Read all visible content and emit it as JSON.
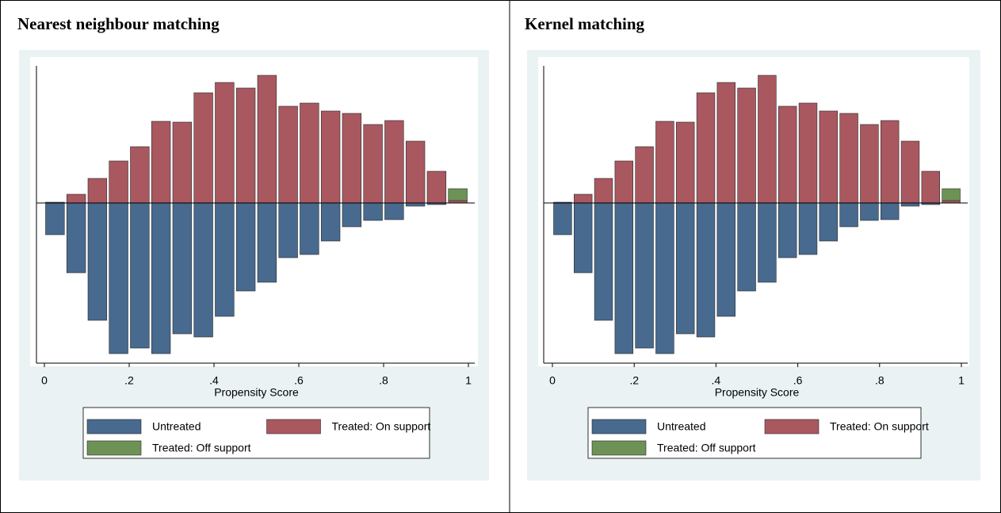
{
  "chart_data": [
    {
      "type": "histogram",
      "title": "Nearest neighbour matching",
      "xlabel": "Propensity Score",
      "bins": [
        0,
        0.05,
        0.1,
        0.15,
        0.2,
        0.25,
        0.3,
        0.35,
        0.4,
        0.45,
        0.5,
        0.55,
        0.6,
        0.65,
        0.7,
        0.75,
        0.8,
        0.85,
        0.9,
        0.95,
        1
      ],
      "series": [
        {
          "name": "Untreated",
          "color": "#476a8e",
          "values": [
            -40,
            -88,
            -148,
            -190,
            -183,
            -190,
            -165,
            -169,
            -143,
            -111,
            -100,
            -69,
            -65,
            -48,
            -30,
            -22,
            -21,
            -4,
            -2,
            0
          ]
        },
        {
          "name": "Treated: On support",
          "color": "#a9585f",
          "values": [
            1,
            11,
            31,
            53,
            71,
            103,
            102,
            139,
            152,
            145,
            161,
            122,
            126,
            116,
            113,
            99,
            104,
            78,
            40,
            3
          ]
        },
        {
          "name": "Treated: Off support",
          "color": "#6d9255",
          "values": [
            null,
            null,
            null,
            null,
            null,
            null,
            null,
            null,
            null,
            null,
            null,
            null,
            null,
            null,
            null,
            null,
            null,
            null,
            null,
            15
          ]
        }
      ],
      "xlim": [
        0,
        1
      ],
      "ylim": [
        -202,
        173
      ],
      "xticks": [
        0,
        {
          "value": 0.2,
          "label": ".2"
        },
        {
          "value": 0.4,
          "label": ".4"
        },
        {
          "value": 0.6,
          "label": ".6"
        },
        {
          "value": 0.8,
          "label": ".8"
        },
        1
      ]
    },
    {
      "type": "histogram",
      "title": "Kernel matching",
      "xlabel": "Propensity Score",
      "bins": [
        0,
        0.05,
        0.1,
        0.15,
        0.2,
        0.25,
        0.3,
        0.35,
        0.4,
        0.45,
        0.5,
        0.55,
        0.6,
        0.65,
        0.7,
        0.75,
        0.8,
        0.85,
        0.9,
        0.95,
        1
      ],
      "series": [
        {
          "name": "Untreated",
          "color": "#476a8e",
          "values": [
            -40,
            -88,
            -148,
            -190,
            -183,
            -190,
            -165,
            -169,
            -143,
            -111,
            -100,
            -69,
            -65,
            -48,
            -30,
            -22,
            -21,
            -4,
            -2,
            0
          ]
        },
        {
          "name": "Treated: On support",
          "color": "#a9585f",
          "values": [
            1,
            11,
            31,
            53,
            71,
            103,
            102,
            139,
            152,
            145,
            161,
            122,
            126,
            116,
            113,
            99,
            104,
            78,
            40,
            3
          ]
        },
        {
          "name": "Treated: Off support",
          "color": "#6d9255",
          "values": [
            null,
            null,
            null,
            null,
            null,
            null,
            null,
            null,
            null,
            null,
            null,
            null,
            null,
            null,
            null,
            null,
            null,
            null,
            null,
            15
          ]
        }
      ],
      "xlim": [
        0,
        1
      ],
      "ylim": [
        -202,
        173
      ],
      "xticks": [
        0,
        {
          "value": 0.2,
          "label": ".2"
        },
        {
          "value": 0.4,
          "label": ".4"
        },
        {
          "value": 0.6,
          "label": ".6"
        },
        {
          "value": 0.8,
          "label": ".8"
        },
        1
      ]
    }
  ]
}
